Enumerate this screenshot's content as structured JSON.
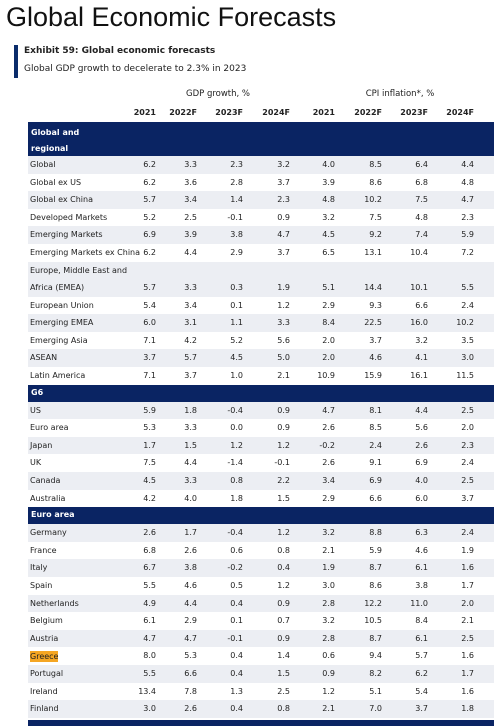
{
  "header": {
    "title": "Global Economic Forecasts",
    "exhibit": "Exhibit 59: Global economic forecasts",
    "subtitle": "Global GDP growth to decelerate to 2.3% in 2023"
  },
  "table": {
    "column_groups": [
      "GDP growth, %",
      "CPI inflation*, %"
    ],
    "columns": [
      "2021",
      "2022F",
      "2023F",
      "2024F",
      "2021",
      "2022F",
      "2023F",
      "2024F"
    ],
    "sections": [
      {
        "title": "Global and regional aggregates",
        "rows": [
          {
            "label": "Global",
            "values": [
              "6.2",
              "3.3",
              "2.3",
              "3.2",
              "4.0",
              "8.5",
              "6.4",
              "4.4"
            ]
          },
          {
            "label": "Global ex US",
            "values": [
              "6.2",
              "3.6",
              "2.8",
              "3.7",
              "3.9",
              "8.6",
              "6.8",
              "4.8"
            ]
          },
          {
            "label": "Global ex China",
            "values": [
              "5.7",
              "3.4",
              "1.4",
              "2.3",
              "4.8",
              "10.2",
              "7.5",
              "4.7"
            ]
          },
          {
            "label": "Developed Markets",
            "values": [
              "5.2",
              "2.5",
              "-0.1",
              "0.9",
              "3.2",
              "7.5",
              "4.8",
              "2.3"
            ]
          },
          {
            "label": "Emerging Markets",
            "values": [
              "6.9",
              "3.9",
              "3.8",
              "4.7",
              "4.5",
              "9.2",
              "7.4",
              "5.9"
            ]
          },
          {
            "label": "Emerging Markets ex China",
            "values": [
              "6.2",
              "4.4",
              "2.9",
              "3.7",
              "6.5",
              "13.1",
              "10.4",
              "7.2"
            ]
          },
          {
            "label": "Europe, Middle East and Africa (EMEA)",
            "values": [
              "5.7",
              "3.3",
              "0.3",
              "1.9",
              "5.1",
              "14.4",
              "10.1",
              "5.5"
            ]
          },
          {
            "label": "European Union",
            "values": [
              "5.4",
              "3.4",
              "0.1",
              "1.2",
              "2.9",
              "9.3",
              "6.6",
              "2.4"
            ]
          },
          {
            "label": "Emerging EMEA",
            "values": [
              "6.0",
              "3.1",
              "1.1",
              "3.3",
              "8.4",
              "22.5",
              "16.0",
              "10.2"
            ]
          },
          {
            "label": "Emerging Asia",
            "values": [
              "7.1",
              "4.2",
              "5.2",
              "5.6",
              "2.0",
              "3.7",
              "3.2",
              "3.5"
            ]
          },
          {
            "label": "ASEAN",
            "values": [
              "3.7",
              "5.7",
              "4.5",
              "5.0",
              "2.0",
              "4.6",
              "4.1",
              "3.0"
            ]
          },
          {
            "label": "Latin America",
            "values": [
              "7.1",
              "3.7",
              "1.0",
              "2.1",
              "10.9",
              "15.9",
              "16.1",
              "11.5"
            ]
          }
        ]
      },
      {
        "title": "G6",
        "rows": [
          {
            "label": "US",
            "values": [
              "5.9",
              "1.8",
              "-0.4",
              "0.9",
              "4.7",
              "8.1",
              "4.4",
              "2.5"
            ]
          },
          {
            "label": "Euro area",
            "values": [
              "5.3",
              "3.3",
              "0.0",
              "0.9",
              "2.6",
              "8.5",
              "5.6",
              "2.0"
            ]
          },
          {
            "label": "Japan",
            "values": [
              "1.7",
              "1.5",
              "1.2",
              "1.2",
              "-0.2",
              "2.4",
              "2.6",
              "2.3"
            ]
          },
          {
            "label": "UK",
            "values": [
              "7.5",
              "4.4",
              "-1.4",
              "-0.1",
              "2.6",
              "9.1",
              "6.9",
              "2.4"
            ]
          },
          {
            "label": "Canada",
            "values": [
              "4.5",
              "3.3",
              "0.8",
              "2.2",
              "3.4",
              "6.9",
              "4.0",
              "2.5"
            ]
          },
          {
            "label": "Australia",
            "values": [
              "4.2",
              "4.0",
              "1.8",
              "1.5",
              "2.9",
              "6.6",
              "6.0",
              "3.7"
            ]
          }
        ]
      },
      {
        "title": "Euro area",
        "rows": [
          {
            "label": "Germany",
            "values": [
              "2.6",
              "1.7",
              "-0.4",
              "1.2",
              "3.2",
              "8.8",
              "6.3",
              "2.4"
            ]
          },
          {
            "label": "France",
            "values": [
              "6.8",
              "2.6",
              "0.6",
              "0.8",
              "2.1",
              "5.9",
              "4.6",
              "1.9"
            ]
          },
          {
            "label": "Italy",
            "values": [
              "6.7",
              "3.8",
              "-0.2",
              "0.4",
              "1.9",
              "8.7",
              "6.1",
              "1.6"
            ]
          },
          {
            "label": "Spain",
            "values": [
              "5.5",
              "4.6",
              "0.5",
              "1.2",
              "3.0",
              "8.6",
              "3.8",
              "1.7"
            ]
          },
          {
            "label": "Netherlands",
            "values": [
              "4.9",
              "4.4",
              "0.4",
              "0.9",
              "2.8",
              "12.2",
              "11.0",
              "2.0"
            ]
          },
          {
            "label": "Belgium",
            "values": [
              "6.1",
              "2.9",
              "0.1",
              "0.7",
              "3.2",
              "10.5",
              "8.4",
              "2.1"
            ]
          },
          {
            "label": "Austria",
            "values": [
              "4.7",
              "4.7",
              "-0.1",
              "0.9",
              "2.8",
              "8.7",
              "6.1",
              "2.5"
            ]
          },
          {
            "label": "Greece",
            "values": [
              "8.0",
              "5.3",
              "0.4",
              "1.4",
              "0.6",
              "9.4",
              "5.7",
              "1.6"
            ],
            "highlight": true
          },
          {
            "label": "Portugal",
            "values": [
              "5.5",
              "6.6",
              "0.4",
              "1.5",
              "0.9",
              "8.2",
              "6.2",
              "1.7"
            ]
          },
          {
            "label": "Ireland",
            "values": [
              "13.4",
              "7.8",
              "1.3",
              "2.5",
              "1.2",
              "5.1",
              "5.4",
              "1.6"
            ]
          },
          {
            "label": "Finland",
            "values": [
              "3.0",
              "2.6",
              "0.4",
              "0.8",
              "2.1",
              "7.0",
              "3.7",
              "1.8"
            ]
          }
        ]
      }
    ]
  }
}
